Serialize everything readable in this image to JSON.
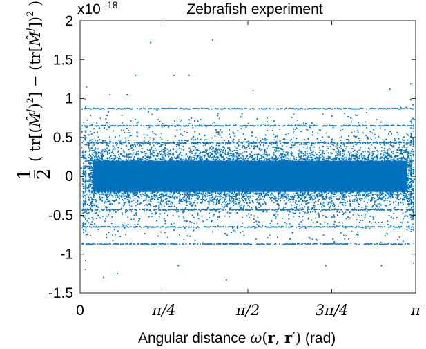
{
  "chart_data": {
    "type": "scatter",
    "title": "Zebrafish experiment",
    "xlabel": "Angular distance ω(r, r′) (rad)",
    "ylabel": "½ ( tr[(M̂ᴶ)²] − (tr[M̂ᴶ])² )",
    "y_multiplier": "x10",
    "y_multiplier_exponent": "-18",
    "xlim": [
      0,
      3.14159
    ],
    "ylim": [
      -1.5,
      2
    ],
    "x_ticks": [
      {
        "value": 0,
        "label": "0"
      },
      {
        "value": 0.7854,
        "label": "π/4"
      },
      {
        "value": 1.5708,
        "label": "π/2"
      },
      {
        "value": 2.3562,
        "label": "3π/4"
      },
      {
        "value": 3.14159,
        "label": "π"
      }
    ],
    "y_ticks": [
      {
        "value": 2,
        "label": "2"
      },
      {
        "value": 1.5,
        "label": "1.5"
      },
      {
        "value": 1,
        "label": "1"
      },
      {
        "value": 0.5,
        "label": "0.5"
      },
      {
        "value": 0,
        "label": "0"
      },
      {
        "value": -0.5,
        "label": "-0.5"
      },
      {
        "value": -1,
        "label": "-1"
      },
      {
        "value": -1.5,
        "label": "-1.5"
      }
    ],
    "grid": false,
    "marker_color": "#0072BD",
    "dense_band": {
      "x_range": [
        0.08,
        3.1
      ],
      "y_center": 0,
      "y_spread": 0.35
    },
    "horizontal_bands": [
      0.87,
      0.65,
      0.43,
      -0.43,
      -0.65,
      -0.87
    ],
    "outliers": [
      {
        "x": 1.24,
        "y": 1.75
      },
      {
        "x": 0.66,
        "y": 1.72
      },
      {
        "x": 0.52,
        "y": 1.3
      },
      {
        "x": 0.88,
        "y": 1.3
      },
      {
        "x": 1.02,
        "y": 1.3
      },
      {
        "x": 0.28,
        "y": 1.05
      },
      {
        "x": 0.44,
        "y": 1.05
      },
      {
        "x": 1.62,
        "y": 1.1
      },
      {
        "x": 2.9,
        "y": 1.12
      },
      {
        "x": 0.06,
        "y": 1.15
      },
      {
        "x": 0.22,
        "y": -1.3
      },
      {
        "x": 0.35,
        "y": -1.25
      },
      {
        "x": 0.92,
        "y": -1.15
      },
      {
        "x": 1.37,
        "y": -1.33
      },
      {
        "x": 2.3,
        "y": -1.15
      },
      {
        "x": 2.82,
        "y": -1.15
      },
      {
        "x": 0.05,
        "y": -1.2
      }
    ]
  }
}
